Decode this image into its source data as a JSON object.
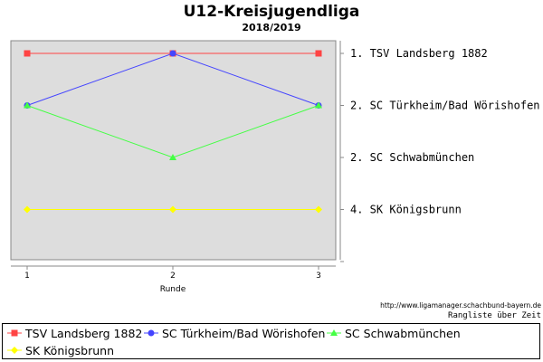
{
  "chart_data": {
    "type": "line",
    "title": "U12-Kreisjugendliga",
    "subtitle": "2018/2019",
    "xlabel": "Runde",
    "ylabel": "",
    "x": [
      1,
      2,
      3
    ],
    "y_inverted": true,
    "ylim": [
      0.5,
      5.0
    ],
    "grid": false,
    "legend_position": "bottom",
    "series": [
      {
        "name": "TSV Landsberg 1882",
        "values": [
          1,
          1,
          1
        ],
        "color": "#ff4444",
        "marker": "square"
      },
      {
        "name": "SC Türkheim/Bad Wörishofen",
        "values": [
          2,
          1,
          2
        ],
        "color": "#4444ff",
        "marker": "circle"
      },
      {
        "name": "SC Schwabmünchen",
        "values": [
          2,
          3,
          2
        ],
        "color": "#44ff44",
        "marker": "triangle"
      },
      {
        "name": "SK Königsbrunn",
        "values": [
          4,
          4,
          4
        ],
        "color": "#ffff00",
        "marker": "diamond"
      }
    ],
    "right_labels": [
      {
        "rank": 1,
        "text": "1. TSV Landsberg 1882"
      },
      {
        "rank": 2,
        "text": "2. SC Türkheim/Bad Wörishofen"
      },
      {
        "rank": 3,
        "text": "2. SC Schwabmünchen"
      },
      {
        "rank": 4,
        "text": "4. SK Königsbrunn"
      }
    ],
    "x_tick_labels": [
      "1",
      "2",
      "3"
    ]
  },
  "source_url": "http://www.ligamanager.schachbund-bayern.de",
  "caption": "Rangliste über Zeit"
}
